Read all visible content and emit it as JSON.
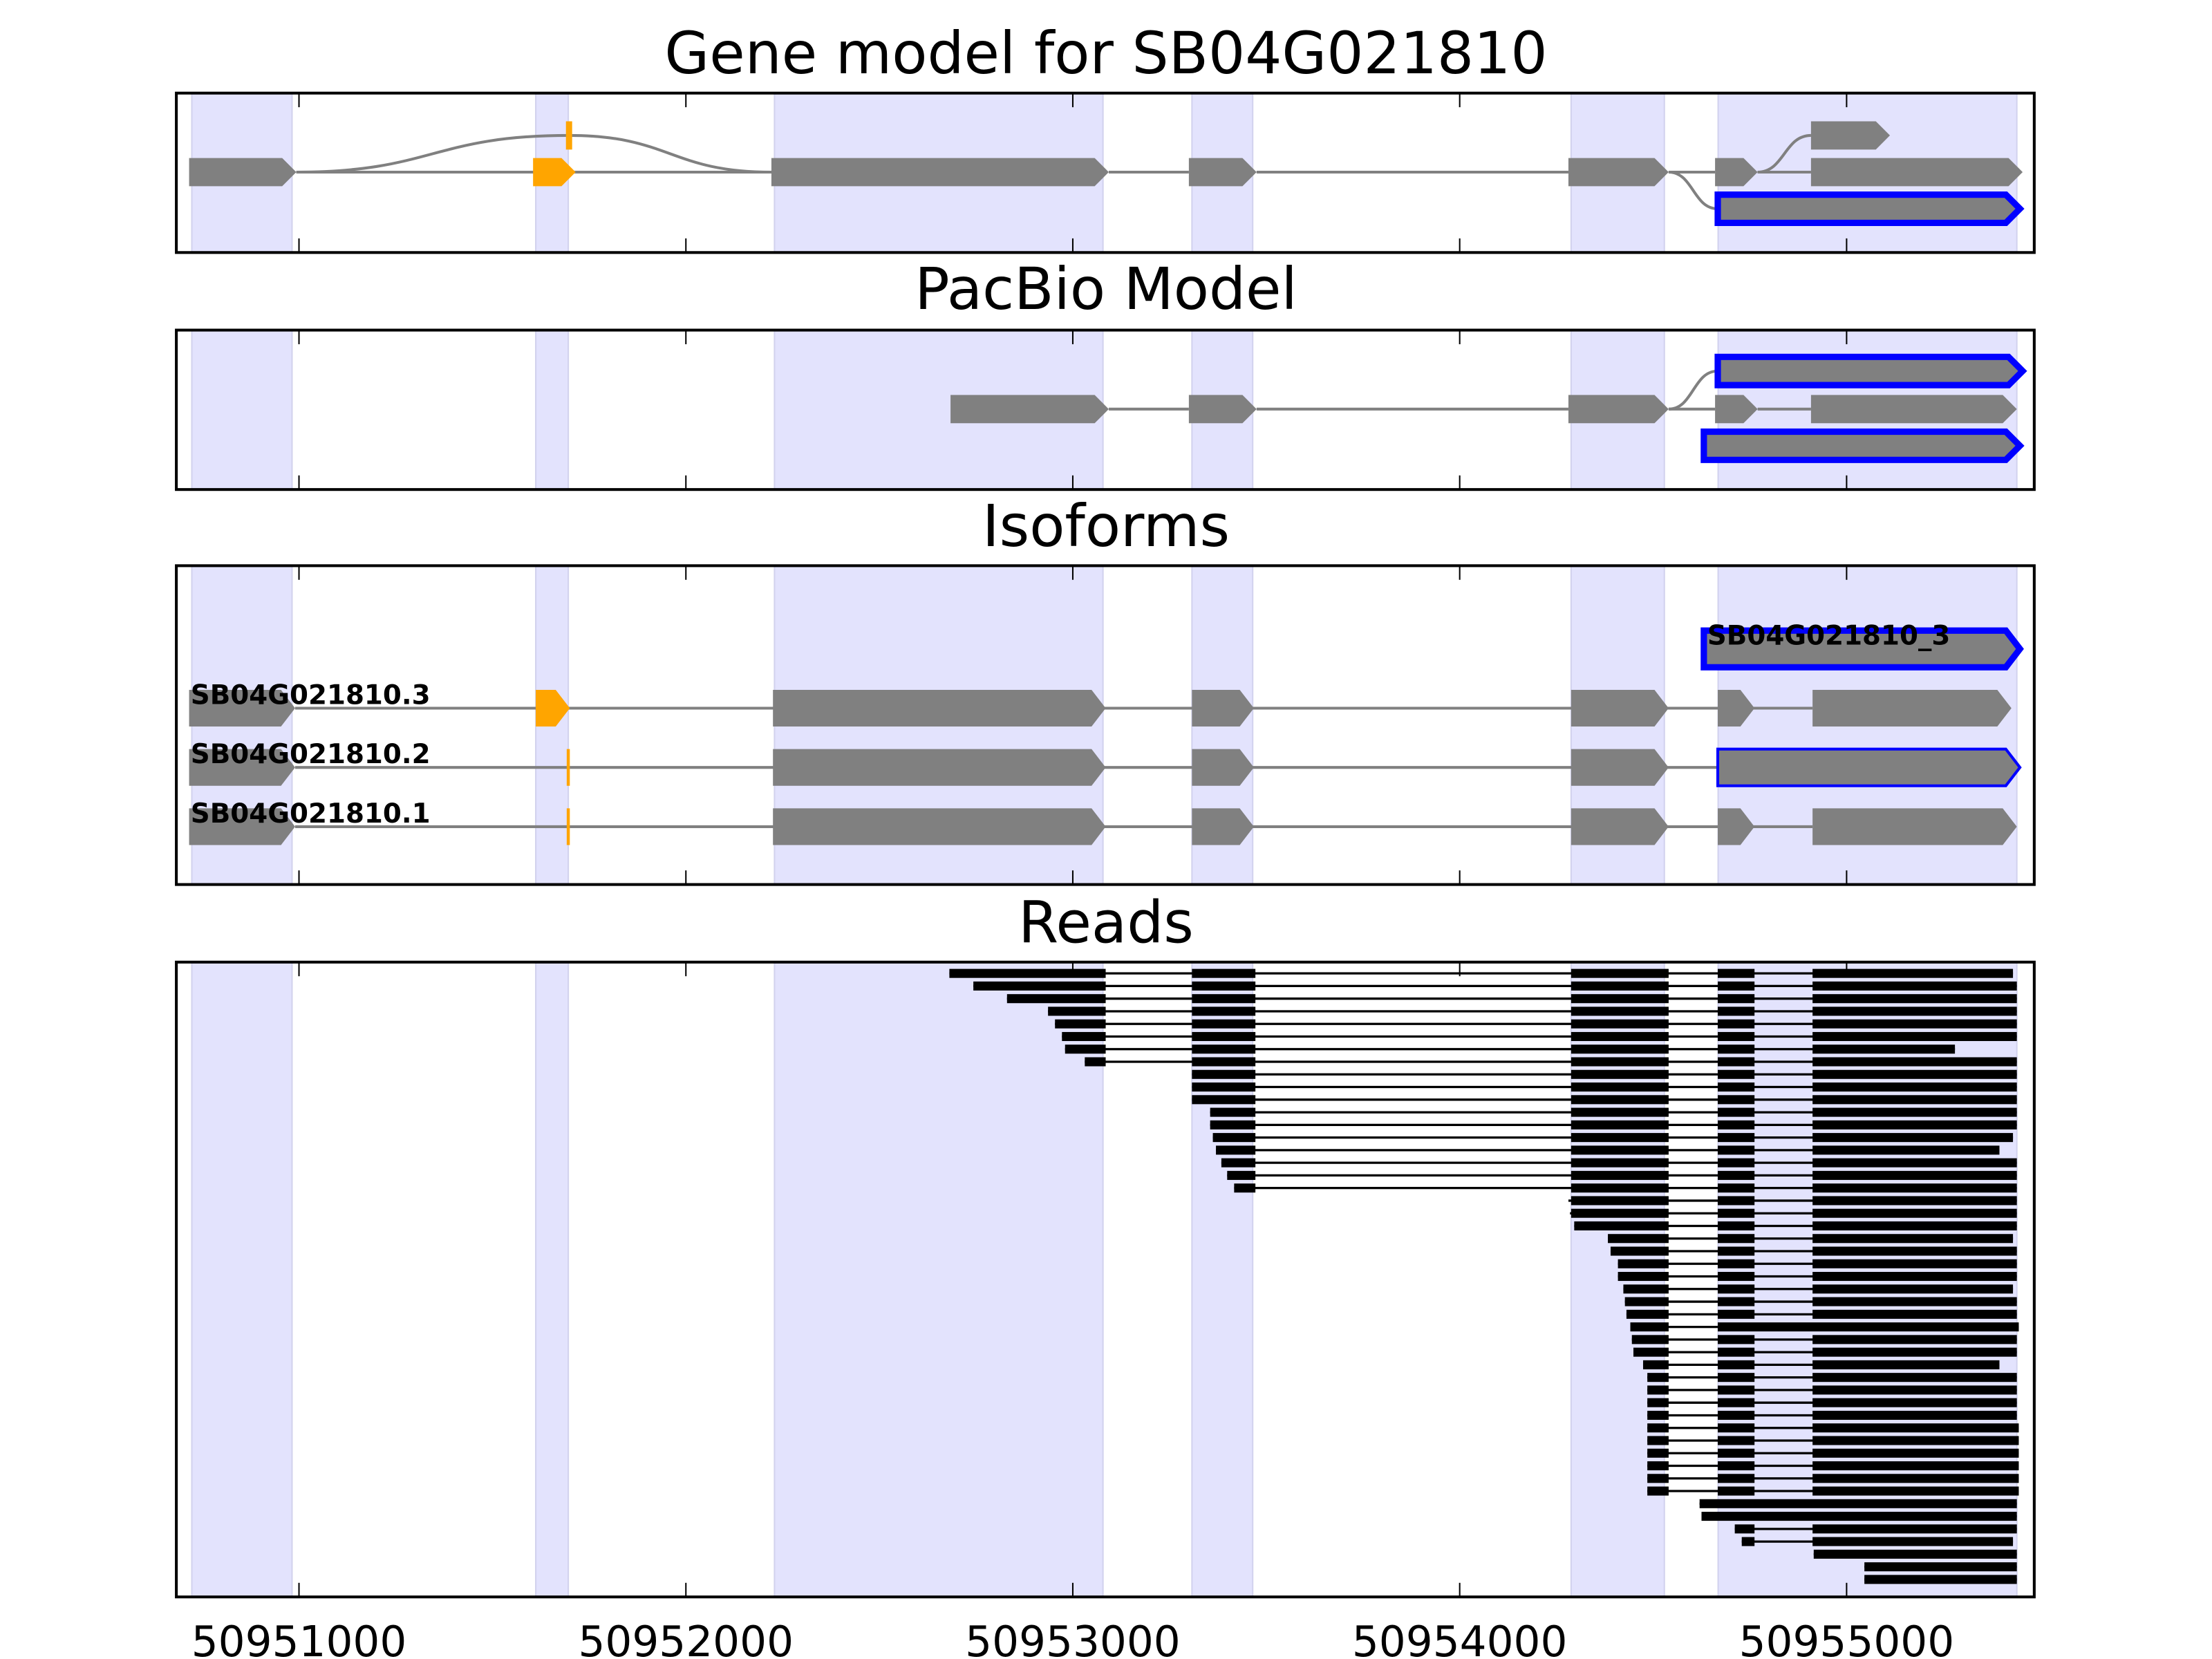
{
  "chart_data": {
    "type": "gene-track",
    "xlim": [
      50950683,
      50955485
    ],
    "xticks": [
      50951000,
      50952000,
      50953000,
      50954000,
      50955000
    ],
    "xtick_labels": [
      "50951000",
      "50952000",
      "50953000",
      "50954000",
      "50955000"
    ],
    "colors": {
      "exon": "#808080",
      "alt_exon": "#ffa500",
      "highlight": "#0000ff",
      "shade": "#e3e3fd",
      "shade_edge": "#d2d2ee",
      "read": "#000000",
      "intron": "#808080"
    },
    "shaded_regions": [
      [
        50950723,
        50950982
      ],
      [
        50951612,
        50951696
      ],
      [
        50952229,
        50953078
      ],
      [
        50953308,
        50953465
      ],
      [
        50954288,
        50954529
      ],
      [
        50954668,
        50955440
      ]
    ],
    "panels": [
      {
        "id": "gene-model",
        "title": "Gene model for SB04G021810",
        "rows": 3,
        "exons": [
          {
            "row": 1,
            "s": 50950716,
            "e": 50950993,
            "c": "exon"
          },
          {
            "row": 1,
            "s": 50951605,
            "e": 50951715,
            "c": "alt_exon"
          },
          {
            "row": 0,
            "s": 50951690,
            "e": 50951706,
            "c": "alt_exon",
            "flat": true
          },
          {
            "row": 1,
            "s": 50952221,
            "e": 50953093,
            "c": "exon"
          },
          {
            "row": 1,
            "s": 50953300,
            "e": 50953475,
            "c": "exon"
          },
          {
            "row": 1,
            "s": 50954281,
            "e": 50954540,
            "c": "exon"
          },
          {
            "row": 1,
            "s": 50954660,
            "e": 50954770,
            "c": "exon"
          },
          {
            "row": 1,
            "s": 50954908,
            "e": 50955455,
            "c": "exon"
          },
          {
            "row": 0,
            "s": 50954908,
            "e": 50955112,
            "c": "exon"
          },
          {
            "row": 2,
            "s": 50954667,
            "e": 50955448,
            "c": "exon",
            "outline": "thick"
          }
        ],
        "junctions": [
          {
            "s": 50950993,
            "e": 50952221,
            "from": 1,
            "to": 1
          },
          {
            "s": 50950993,
            "e": 50951698,
            "from": 1,
            "to": 0
          },
          {
            "s": 50951698,
            "e": 50952221,
            "from": 0,
            "to": 1
          },
          {
            "s": 50953093,
            "e": 50953300,
            "from": 1,
            "to": 1
          },
          {
            "s": 50953475,
            "e": 50954281,
            "from": 1,
            "to": 1
          },
          {
            "s": 50954540,
            "e": 50954660,
            "from": 1,
            "to": 1
          },
          {
            "s": 50954770,
            "e": 50954908,
            "from": 1,
            "to": 1
          },
          {
            "s": 50954540,
            "e": 50954667,
            "from": 1,
            "to": 2
          },
          {
            "s": 50954770,
            "e": 50954908,
            "from": 1,
            "to": 0
          }
        ]
      },
      {
        "id": "pacbio-model",
        "title": "PacBio Model",
        "rows": 3,
        "exons": [
          {
            "row": 0,
            "s": 50954667,
            "e": 50955455,
            "c": "exon",
            "outline": "thick"
          },
          {
            "row": 1,
            "s": 50952684,
            "e": 50953093,
            "c": "exon"
          },
          {
            "row": 1,
            "s": 50953300,
            "e": 50953475,
            "c": "exon"
          },
          {
            "row": 1,
            "s": 50954281,
            "e": 50954540,
            "c": "exon"
          },
          {
            "row": 1,
            "s": 50954660,
            "e": 50954770,
            "c": "exon"
          },
          {
            "row": 1,
            "s": 50954908,
            "e": 50955440,
            "c": "exon"
          },
          {
            "row": 2,
            "s": 50954631,
            "e": 50955448,
            "c": "exon",
            "outline": "thick"
          }
        ],
        "junctions": [
          {
            "s": 50953093,
            "e": 50953300,
            "from": 1,
            "to": 1
          },
          {
            "s": 50953475,
            "e": 50954281,
            "from": 1,
            "to": 1
          },
          {
            "s": 50954540,
            "e": 50954660,
            "from": 1,
            "to": 1
          },
          {
            "s": 50954770,
            "e": 50954908,
            "from": 1,
            "to": 1
          },
          {
            "s": 50954540,
            "e": 50954667,
            "from": 1,
            "to": 0
          }
        ]
      },
      {
        "id": "isoforms",
        "title": "Isoforms",
        "rows": 4,
        "labels": [
          {
            "row": 0,
            "text": "SB04G021810_3",
            "at": 50954640
          },
          {
            "row": 1,
            "text": "SB04G021810.3",
            "at": 50950720
          },
          {
            "row": 2,
            "text": "SB04G021810.2",
            "at": 50950720
          },
          {
            "row": 3,
            "text": "SB04G021810.1",
            "at": 50950720
          }
        ],
        "exons": [
          {
            "row": 0,
            "s": 50954631,
            "e": 50955448,
            "c": "exon",
            "outline": "thick"
          },
          {
            "row": 1,
            "s": 50950716,
            "e": 50950990,
            "c": "exon"
          },
          {
            "row": 1,
            "s": 50951612,
            "e": 50951700,
            "c": "alt_exon"
          },
          {
            "row": 1,
            "s": 50952225,
            "e": 50953085,
            "c": "exon"
          },
          {
            "row": 1,
            "s": 50953308,
            "e": 50953468,
            "c": "exon"
          },
          {
            "row": 1,
            "s": 50954288,
            "e": 50954540,
            "c": "exon"
          },
          {
            "row": 1,
            "s": 50954667,
            "e": 50954762,
            "c": "exon"
          },
          {
            "row": 1,
            "s": 50954912,
            "e": 50955426,
            "c": "exon"
          },
          {
            "row": 2,
            "s": 50950716,
            "e": 50950990,
            "c": "exon"
          },
          {
            "row": 2,
            "s": 50951692,
            "e": 50951700,
            "c": "alt_exon",
            "flat": true
          },
          {
            "row": 2,
            "s": 50952225,
            "e": 50953085,
            "c": "exon"
          },
          {
            "row": 2,
            "s": 50953308,
            "e": 50953468,
            "c": "exon"
          },
          {
            "row": 2,
            "s": 50954288,
            "e": 50954540,
            "c": "exon"
          },
          {
            "row": 2,
            "s": 50954667,
            "e": 50955448,
            "c": "exon",
            "outline": "thin"
          },
          {
            "row": 3,
            "s": 50950716,
            "e": 50950990,
            "c": "exon"
          },
          {
            "row": 3,
            "s": 50951692,
            "e": 50951700,
            "c": "alt_exon",
            "flat": true
          },
          {
            "row": 3,
            "s": 50952225,
            "e": 50953085,
            "c": "exon"
          },
          {
            "row": 3,
            "s": 50953308,
            "e": 50953468,
            "c": "exon"
          },
          {
            "row": 3,
            "s": 50954288,
            "e": 50954540,
            "c": "exon"
          },
          {
            "row": 3,
            "s": 50954667,
            "e": 50954762,
            "c": "exon"
          },
          {
            "row": 3,
            "s": 50954912,
            "e": 50955440,
            "c": "exon"
          }
        ],
        "junctions": [
          {
            "s": 50950990,
            "e": 50954912,
            "from": 1,
            "to": 1
          },
          {
            "s": 50950990,
            "e": 50954667,
            "from": 2,
            "to": 2
          },
          {
            "s": 50950990,
            "e": 50954912,
            "from": 3,
            "to": 3
          }
        ]
      },
      {
        "id": "reads",
        "title": "Reads",
        "read_exon_template": [
          [
            50953085,
            50953308
          ],
          [
            50953472,
            50954288
          ],
          [
            50954540,
            50954667
          ],
          [
            50954762,
            50954912
          ]
        ],
        "reads": [
          {
            "s": 50952681,
            "e": 50955430
          },
          {
            "s": 50952743,
            "e": 50955440
          },
          {
            "s": 50952830,
            "e": 50955440
          },
          {
            "s": 50952936,
            "e": 50955440
          },
          {
            "s": 50952954,
            "e": 50955440
          },
          {
            "s": 50952972,
            "e": 50955440
          },
          {
            "s": 50952980,
            "e": 50955280
          },
          {
            "s": 50953031,
            "e": 50955440
          },
          {
            "s": 50953308,
            "e": 50955440
          },
          {
            "s": 50953308,
            "e": 50955440
          },
          {
            "s": 50953308,
            "e": 50955440
          },
          {
            "s": 50953355,
            "e": 50955440
          },
          {
            "s": 50953355,
            "e": 50955440
          },
          {
            "s": 50953362,
            "e": 50955430
          },
          {
            "s": 50953370,
            "e": 50955395
          },
          {
            "s": 50953384,
            "e": 50955440
          },
          {
            "s": 50953399,
            "e": 50955440
          },
          {
            "s": 50953417,
            "e": 50955440
          },
          {
            "s": 50954281,
            "e": 50955440
          },
          {
            "s": 50954285,
            "e": 50955440
          },
          {
            "s": 50954296,
            "e": 50955440
          },
          {
            "s": 50954383,
            "e": 50955430
          },
          {
            "s": 50954390,
            "e": 50955440
          },
          {
            "s": 50954409,
            "e": 50955440
          },
          {
            "s": 50954409,
            "e": 50955440
          },
          {
            "s": 50954423,
            "e": 50955430
          },
          {
            "s": 50954427,
            "e": 50955440
          },
          {
            "s": 50954431,
            "e": 50955440
          },
          {
            "s": 50954441,
            "e": 50955445,
            "retained": true
          },
          {
            "s": 50954445,
            "e": 50955440
          },
          {
            "s": 50954449,
            "e": 50955440
          },
          {
            "s": 50954474,
            "e": 50955395
          },
          {
            "s": 50954485,
            "e": 50955440
          },
          {
            "s": 50954485,
            "e": 50955440
          },
          {
            "s": 50954485,
            "e": 50955440
          },
          {
            "s": 50954485,
            "e": 50955440
          },
          {
            "s": 50954485,
            "e": 50955445
          },
          {
            "s": 50954485,
            "e": 50955445
          },
          {
            "s": 50954485,
            "e": 50955445
          },
          {
            "s": 50954485,
            "e": 50955445
          },
          {
            "s": 50954485,
            "e": 50955445
          },
          {
            "s": 50954485,
            "e": 50955445
          },
          {
            "s": 50954620,
            "e": 50955440,
            "unspliced": true
          },
          {
            "s": 50954625,
            "e": 50955440,
            "unspliced": true
          },
          {
            "s": 50954711,
            "e": 50955440
          },
          {
            "s": 50954729,
            "e": 50955430
          },
          {
            "s": 50954915,
            "e": 50955440
          },
          {
            "s": 50955046,
            "e": 50955440
          },
          {
            "s": 50955046,
            "e": 50955440
          }
        ]
      }
    ]
  }
}
